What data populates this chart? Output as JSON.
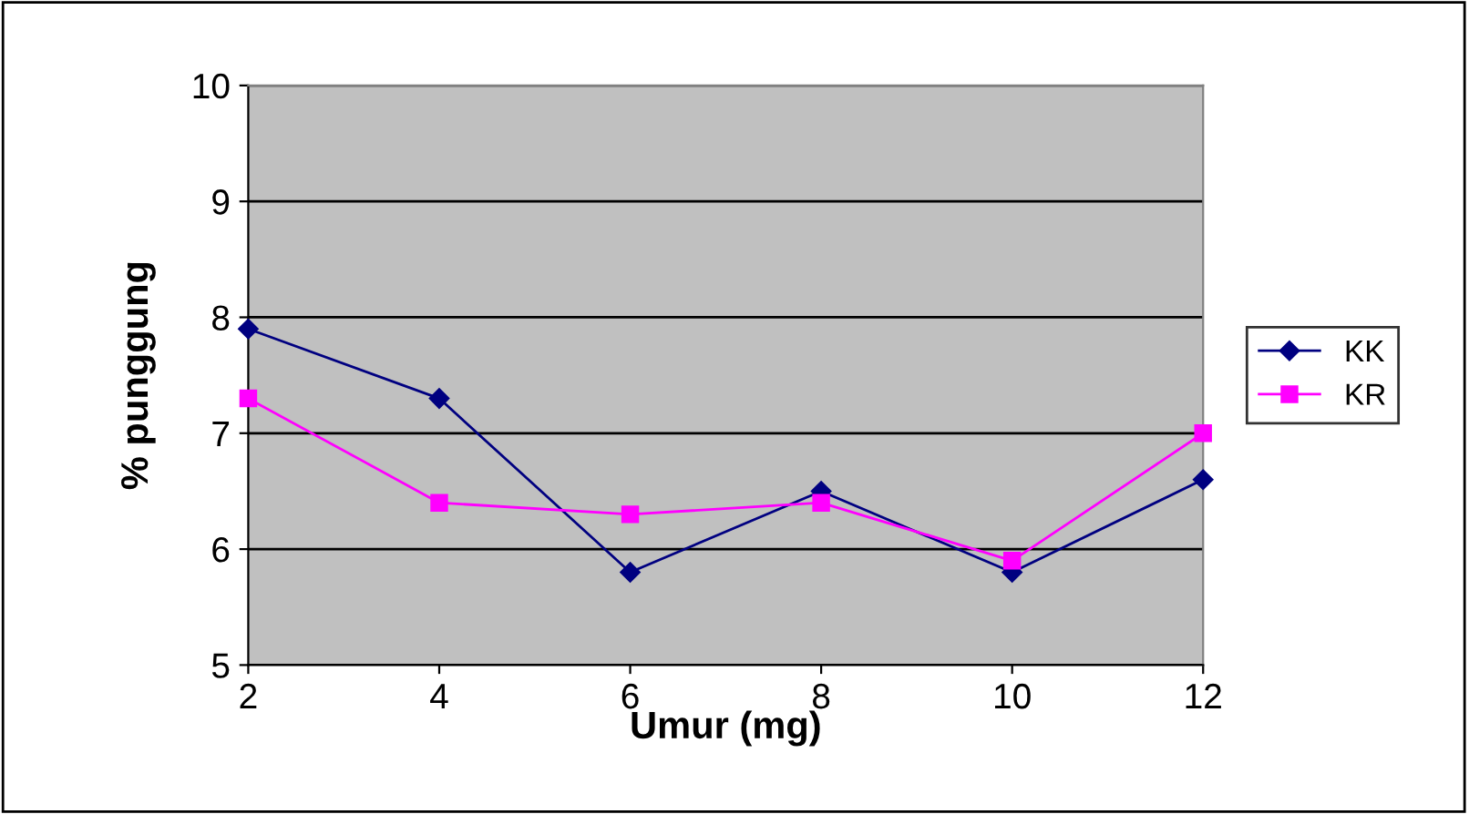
{
  "chart_data": {
    "type": "line",
    "xlabel": "Umur (mg)",
    "ylabel": "% punggung",
    "x": [
      2,
      4,
      6,
      8,
      10,
      12
    ],
    "series": [
      {
        "name": "KK",
        "color": "#000080",
        "marker": "diamond",
        "values": [
          7.9,
          7.3,
          5.8,
          6.5,
          5.8,
          6.6
        ]
      },
      {
        "name": "KR",
        "color": "#ff00ff",
        "marker": "square",
        "values": [
          7.3,
          6.4,
          6.3,
          6.4,
          5.9,
          7.0
        ]
      }
    ],
    "xlim": [
      2,
      12
    ],
    "xticks": [
      2,
      4,
      6,
      8,
      10,
      12
    ],
    "ylim": [
      5,
      10
    ],
    "yticks": [
      5,
      6,
      7,
      8,
      9,
      10
    ],
    "grid": "y",
    "legend": "right",
    "line_style": "solid"
  }
}
